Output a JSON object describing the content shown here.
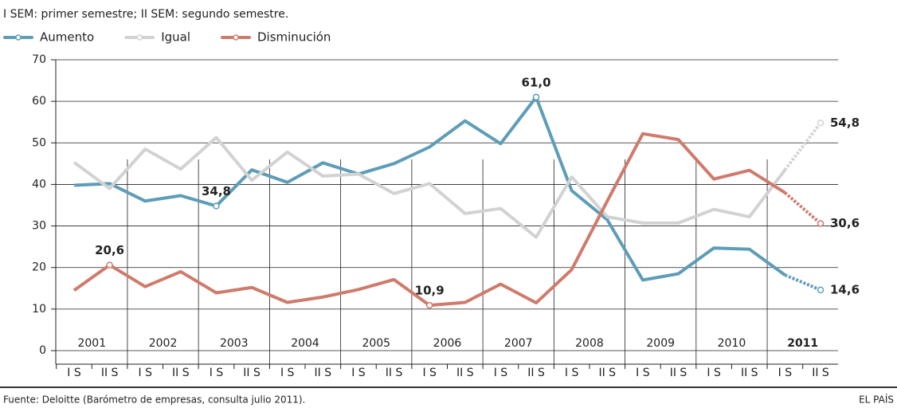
{
  "chart_data": {
    "type": "line",
    "title": "I SEM: primer semestre; II SEM: segundo semestre.",
    "source": "Fuente: Deloitte (Barómetro de empresas, consulta julio 2011).",
    "credit": "EL PAÍS",
    "categories": [
      "I S",
      "II S",
      "I S",
      "II S",
      "I S",
      "II S",
      "I S",
      "II S",
      "I S",
      "II S",
      "I S",
      "II S",
      "I S",
      "II S",
      "I S",
      "II S",
      "I S",
      "II S",
      "I S",
      "II S",
      "I S",
      "II S"
    ],
    "years": [
      "2001",
      "2002",
      "2003",
      "2004",
      "2005",
      "2006",
      "2007",
      "2008",
      "2009",
      "2010",
      "2011"
    ],
    "highlight_year_index": 10,
    "dotted_from_index": 20,
    "ylim": [
      0,
      70
    ],
    "yticks": [
      0,
      10,
      20,
      30,
      40,
      50,
      60,
      70
    ],
    "grid": true,
    "series": [
      {
        "name": "Aumento",
        "color": "#5d9db7",
        "values": [
          39.8,
          40.2,
          36,
          37.3,
          34.8,
          43.5,
          40.5,
          45.2,
          42.5,
          45,
          49,
          55.3,
          49.8,
          61.0,
          38.5,
          31.5,
          17,
          18.5,
          24.7,
          24.4,
          18.2,
          14.6
        ],
        "value_labels": [
          null,
          null,
          null,
          null,
          "34,8",
          null,
          null,
          null,
          null,
          null,
          null,
          null,
          null,
          "61,0",
          null,
          null,
          null,
          null,
          null,
          null,
          null,
          "14,6"
        ]
      },
      {
        "name": "Igual",
        "color": "#d2d2d2",
        "values": [
          45.3,
          39,
          48.5,
          43.7,
          51.3,
          41,
          47.8,
          42,
          42.5,
          37.8,
          40.2,
          33,
          34.2,
          27.3,
          41.8,
          32.2,
          30.7,
          30.7,
          34,
          32.2,
          43.5,
          54.8
        ],
        "value_labels": [
          null,
          null,
          null,
          null,
          null,
          null,
          null,
          null,
          null,
          null,
          null,
          null,
          null,
          null,
          null,
          null,
          null,
          null,
          null,
          null,
          null,
          "54,8"
        ]
      },
      {
        "name": "Disminución",
        "color": "#cf7b6b",
        "values": [
          14.5,
          20.6,
          15.4,
          19,
          13.9,
          15.2,
          11.6,
          12.9,
          14.7,
          17.1,
          10.9,
          11.6,
          16,
          11.5,
          19.5,
          36,
          52.2,
          50.8,
          41.3,
          43.4,
          38,
          30.6
        ],
        "value_labels": [
          null,
          "20,6",
          null,
          null,
          null,
          null,
          null,
          null,
          null,
          null,
          "10,9",
          null,
          null,
          null,
          null,
          null,
          null,
          null,
          null,
          null,
          null,
          "30,6"
        ]
      }
    ]
  }
}
